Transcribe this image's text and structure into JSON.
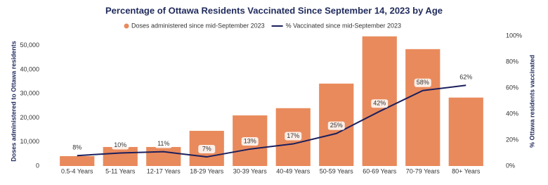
{
  "chart_data": {
    "type": "bar_line",
    "title": "Percentage of Ottawa Residents Vaccinated Since September 14, 2023 by Age",
    "categories": [
      "0.5-4 Years",
      "5-11 Years",
      "12-17 Years",
      "18-29 Years",
      "30-39 Years",
      "40-49 Years",
      "50-59 Years",
      "60-69 Years",
      "70-79 Years",
      "80+ Years"
    ],
    "series": [
      {
        "name": "Doses administered since mid-September 2023",
        "color": "#e98a5c",
        "type": "bar",
        "values": [
          4100,
          7900,
          7900,
          14600,
          21000,
          24000,
          34200,
          53800,
          48500,
          28400
        ]
      },
      {
        "name": "% Vaccinated since mid-September 2023",
        "color": "#1b1f5c",
        "type": "line",
        "axis": "y2",
        "values": [
          8,
          10,
          11,
          7,
          13,
          17,
          25,
          42,
          58,
          62
        ],
        "value_labels": [
          "8%",
          "10%",
          "11%",
          "7%",
          "13%",
          "17%",
          "25%",
          "42%",
          "58%",
          "62%"
        ]
      }
    ],
    "ylabel": "Doses administered to Ottawa residents",
    "y2label": "% Ottawa residents vaccinated",
    "ylim": [
      0,
      54000
    ],
    "yticks": [
      0,
      {
        "value": 10000,
        "label": "10,000"
      },
      {
        "value": 20000,
        "label": "20,000"
      },
      {
        "value": 30000,
        "label": "30,000"
      },
      {
        "value": 40000,
        "label": "40,000"
      },
      {
        "value": 50000,
        "label": "50,000"
      }
    ],
    "y2lim": [
      0,
      100
    ],
    "y2ticks": [
      {
        "value": 0,
        "label": "0%"
      },
      {
        "value": 20,
        "label": "20%"
      },
      {
        "value": 40,
        "label": "40%"
      },
      {
        "value": 60,
        "label": "60%"
      },
      {
        "value": 80,
        "label": "80%"
      },
      {
        "value": 100,
        "label": "100%"
      }
    ]
  }
}
